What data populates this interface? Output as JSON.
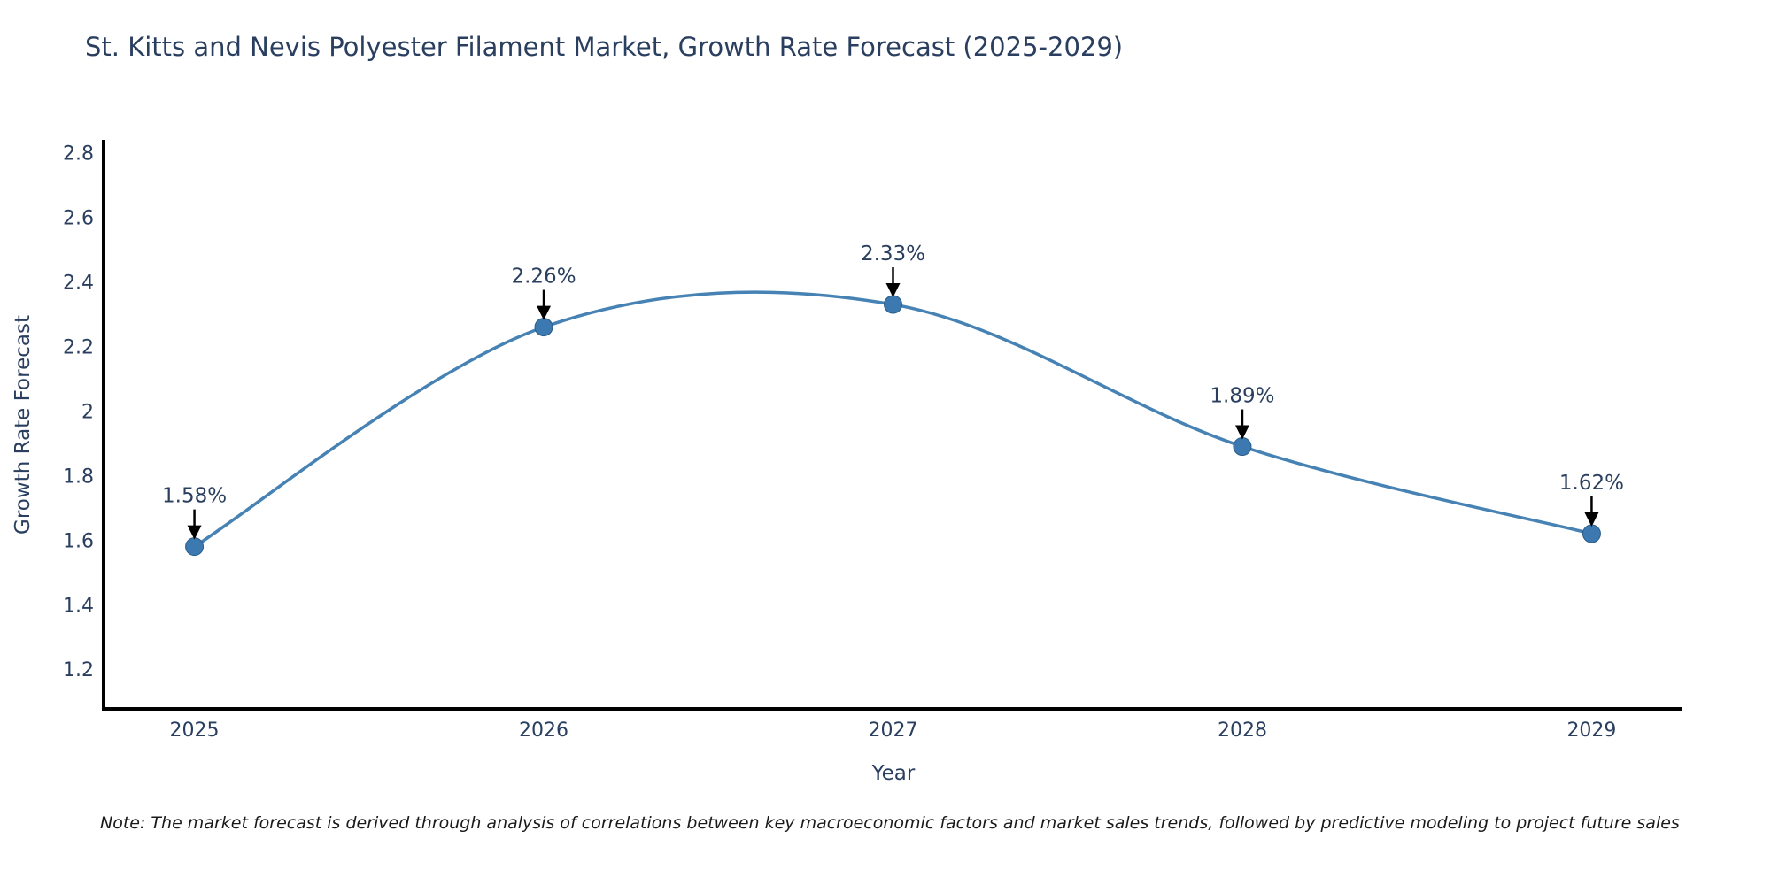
{
  "chart": {
    "title": "St. Kitts and Nevis Polyester Filament Market, Growth Rate Forecast (2025-2029)",
    "xaxis_title": "Year",
    "yaxis_title": "Growth Rate Forecast"
  },
  "note": {
    "text": "Note: The market forecast is derived through analysis of correlations between key macroeconomic factors and market sales trends, followed by predictive modeling to project future sales"
  },
  "chart_data": {
    "type": "line",
    "line_shape": "spline",
    "x": [
      2025,
      2026,
      2027,
      2028,
      2029
    ],
    "y": [
      1.58,
      2.26,
      2.33,
      1.89,
      1.62
    ],
    "point_labels": [
      "1.58%",
      "2.26%",
      "2.33%",
      "1.89%",
      "1.62%"
    ],
    "xtick_labels": [
      "2025",
      "2026",
      "2027",
      "2028",
      "2029"
    ],
    "yticks": [
      1.2,
      1.4,
      1.6,
      1.8,
      2,
      2.2,
      2.4,
      2.6,
      2.8
    ],
    "ytick_labels": [
      "1.2",
      "1.4",
      "1.6",
      "1.8",
      "2",
      "2.2",
      "2.4",
      "2.6",
      "2.8"
    ],
    "title": "St. Kitts and Nevis Polyester Filament Market, Growth Rate Forecast (2025-2029)",
    "xlabel": "Year",
    "ylabel": "Growth Rate Forecast",
    "xlim": [
      2024.74,
      2029.26
    ],
    "ylim": [
      1.08,
      2.84
    ],
    "grid": false,
    "legend": false,
    "annotations_have_arrows": true,
    "colors": {
      "line": "#4682b4",
      "marker_fill": "#3c79b1",
      "marker_edge": "#2a5d87",
      "arrow": "#000000",
      "axis_line": "#000000",
      "tick_text": "#2a3f5f",
      "annotation_text": "#2a3f5f",
      "background": "#ffffff"
    }
  }
}
